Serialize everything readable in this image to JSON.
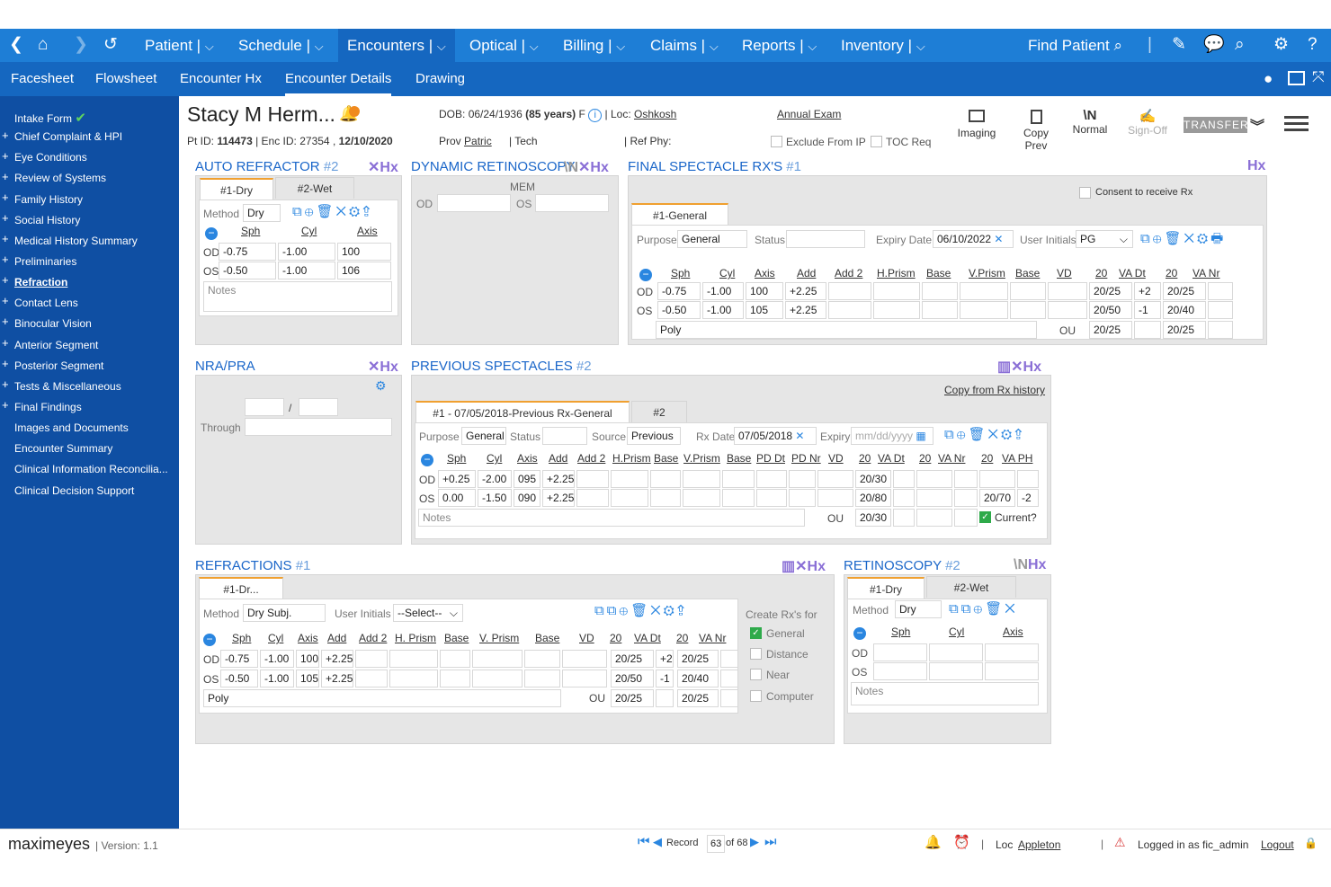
{
  "nav": {
    "items": [
      "Patient |",
      "Schedule |",
      "Encounters |",
      "Optical |",
      "Billing |",
      "Claims |",
      "Reports |",
      "Inventory |"
    ],
    "find_patient": "Find Patient",
    "caret": "⌵"
  },
  "subnav": {
    "items": [
      "Facesheet",
      "Flowsheet",
      "Encounter Hx",
      "Encounter Details",
      "Drawing"
    ]
  },
  "sidebar": {
    "items": [
      "Intake Form",
      "Chief Complaint & HPI",
      "Eye Conditions",
      "Review of Systems",
      "Family History",
      "Social History",
      "Medical History Summary",
      "Preliminaries",
      "Refraction",
      "Contact Lens",
      "Binocular Vision",
      "Anterior Segment",
      "Posterior Segment",
      "Tests & Miscellaneous",
      "Final Findings",
      "Images and Documents",
      "Encounter Summary",
      "Clinical Information Reconcilia...",
      "Clinical Decision Support"
    ]
  },
  "patient": {
    "name": "Stacy M Herm...",
    "dob_label": "DOB:",
    "dob": "06/24/1936",
    "age": "(85 years)",
    "sex": "F",
    "loc_label": "| Loc:",
    "loc": "Oshkosh",
    "visit": "Annual Exam",
    "ptid_label": "Pt ID:",
    "ptid": "114473",
    "enc_label": "| Enc ID:",
    "enc": "27354 ,",
    "date": "12/10/2020",
    "prov_label": "Prov",
    "prov": "Patric",
    "tech": "| Tech",
    "refphy": "| Ref Phy:",
    "exclude": "Exclude From IP",
    "toc": "TOC Req"
  },
  "actions": {
    "imaging": "Imaging",
    "copy_prev": "Copy Prev",
    "normal": "Normal",
    "signoff": "Sign-Off",
    "transfer": "TRANSFER"
  },
  "hx": "Hx",
  "auto": {
    "title": "AUTO REFRACTOR",
    "num": "#2",
    "tabs": [
      "#1-Dry",
      "#2-Wet"
    ],
    "method_label": "Method",
    "method": "Dry",
    "cols": [
      "Sph",
      "Cyl",
      "Axis"
    ],
    "rows": [
      {
        "eye": "OD",
        "v": [
          "-0.75",
          "-1.00",
          "100"
        ]
      },
      {
        "eye": "OS",
        "v": [
          "-0.50",
          "-1.00",
          "106"
        ]
      }
    ],
    "notes": "Notes"
  },
  "dyn": {
    "title": "DYNAMIC RETINOSCOPY",
    "mem": "MEM",
    "od": "OD",
    "os": "OS"
  },
  "final": {
    "title": "FINAL SPECTACLE RX'S",
    "num": "#1",
    "consent": "Consent to receive Rx",
    "tab": "#1-General",
    "purpose_label": "Purpose",
    "purpose": "General",
    "status_label": "Status",
    "expiry_label": "Expiry Date",
    "expiry": "06/10/2022",
    "initials_label": "User Initials",
    "initials": "PG",
    "cols": [
      "Sph",
      "Cyl",
      "Axis",
      "Add",
      "Add 2",
      "H.Prism",
      "Base",
      "V.Prism",
      "Base",
      "VD",
      "20",
      "VA Dt",
      "20",
      "VA Nr"
    ],
    "od": [
      "-0.75",
      "-1.00",
      "100",
      "+2.25",
      "20/25",
      "+2",
      "20/25"
    ],
    "os": [
      "-0.50",
      "-1.00",
      "105",
      "+2.25",
      "20/50",
      "-1",
      "20/40"
    ],
    "poly": "Poly",
    "ou": "OU",
    "ou_v": [
      "20/25",
      "20/25"
    ]
  },
  "nra": {
    "title": "NRA/PRA",
    "slash": "/",
    "through": "Through"
  },
  "prev": {
    "title": "PREVIOUS SPECTACLES",
    "num": "#2",
    "copy": "Copy from Rx history",
    "tabs": [
      "#1 - 07/05/2018-Previous Rx-General",
      "#2"
    ],
    "purpose_label": "Purpose",
    "purpose": "General",
    "status_label": "Status",
    "source_label": "Source",
    "source": "Previous",
    "rxdate_label": "Rx Date",
    "rxdate": "07/05/2018",
    "expiry_label": "Expiry",
    "expiry_ph": "mm/dd/yyyy",
    "cols": [
      "Sph",
      "Cyl",
      "Axis",
      "Add",
      "Add 2",
      "H.Prism",
      "Base",
      "V.Prism",
      "Base",
      "PD Dt",
      "PD Nr",
      "VD",
      "20",
      "VA Dt",
      "20",
      "VA Nr",
      "20",
      "VA PH"
    ],
    "od": [
      "+0.25",
      "-2.00",
      "095",
      "+2.25",
      "20/30"
    ],
    "os": [
      "0.00",
      "-1.50",
      "090",
      "+2.25",
      "20/80",
      "20/70",
      "-2"
    ],
    "notes": "Notes",
    "ou": "OU",
    "ou_v": "20/30",
    "current": "Current?"
  },
  "refr": {
    "title": "REFRACTIONS",
    "num": "#1",
    "tab": "#1-Dr...",
    "method_label": "Method",
    "method": "Dry Subj.",
    "initials_label": "User Initials",
    "initials": "--Select--",
    "cols": [
      "Sph",
      "Cyl",
      "Axis",
      "Add",
      "Add 2",
      "H. Prism",
      "Base",
      "V. Prism",
      "Base",
      "VD",
      "20",
      "VA Dt",
      "20",
      "VA Nr"
    ],
    "od": [
      "-0.75",
      "-1.00",
      "100",
      "+2.25",
      "20/25",
      "+2",
      "20/25"
    ],
    "os": [
      "-0.50",
      "-1.00",
      "105",
      "+2.25",
      "20/50",
      "-1",
      "20/40"
    ],
    "poly": "Poly",
    "ou": "OU",
    "ou_v": [
      "20/25",
      "20/25"
    ],
    "create": "Create Rx's for",
    "opts": [
      "General",
      "Distance",
      "Near",
      "Computer"
    ]
  },
  "ret": {
    "title": "RETINOSCOPY",
    "num": "#2",
    "tabs": [
      "#1-Dry",
      "#2-Wet"
    ],
    "method_label": "Method",
    "method": "Dry",
    "cols": [
      "Sph",
      "Cyl",
      "Axis"
    ],
    "od": "OD",
    "os": "OS",
    "notes": "Notes"
  },
  "footer": {
    "brand": "maximeyes",
    "version": "| Version: 1.1",
    "record": "Record",
    "rec_num": "63",
    "rec_of": "of 68",
    "loc_label": "Loc",
    "loc": "Appleton",
    "logged": "Logged in as fic_admin",
    "logout": "Logout"
  }
}
